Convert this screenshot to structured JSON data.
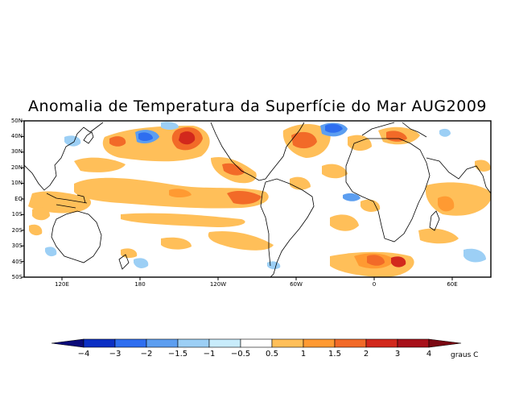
{
  "title": "Anomalia de Temperatura da Superfície do Mar AUG2009",
  "lat_labels": [
    "50N",
    "40N",
    "30N",
    "20N",
    "10N",
    "EQ",
    "10S",
    "20S",
    "30S",
    "40S",
    "50S"
  ],
  "lon_labels": [
    "120E",
    "180",
    "120W",
    "60W",
    "0",
    "60E"
  ],
  "colorbar": {
    "labels": [
      "−4",
      "−3",
      "−2",
      "−1.5",
      "−1",
      "−0.5",
      "0.5",
      "1",
      "1.5",
      "2",
      "3",
      "4"
    ],
    "colors": [
      "#0a0a78",
      "#0b2fc4",
      "#2e6ef0",
      "#5c9ef0",
      "#9ccff5",
      "#c8ecfb",
      "#ffffff",
      "#ffbf59",
      "#ff9a32",
      "#f26a28",
      "#d2281c",
      "#a8101a",
      "#7a0812"
    ],
    "units": "graus C"
  }
}
